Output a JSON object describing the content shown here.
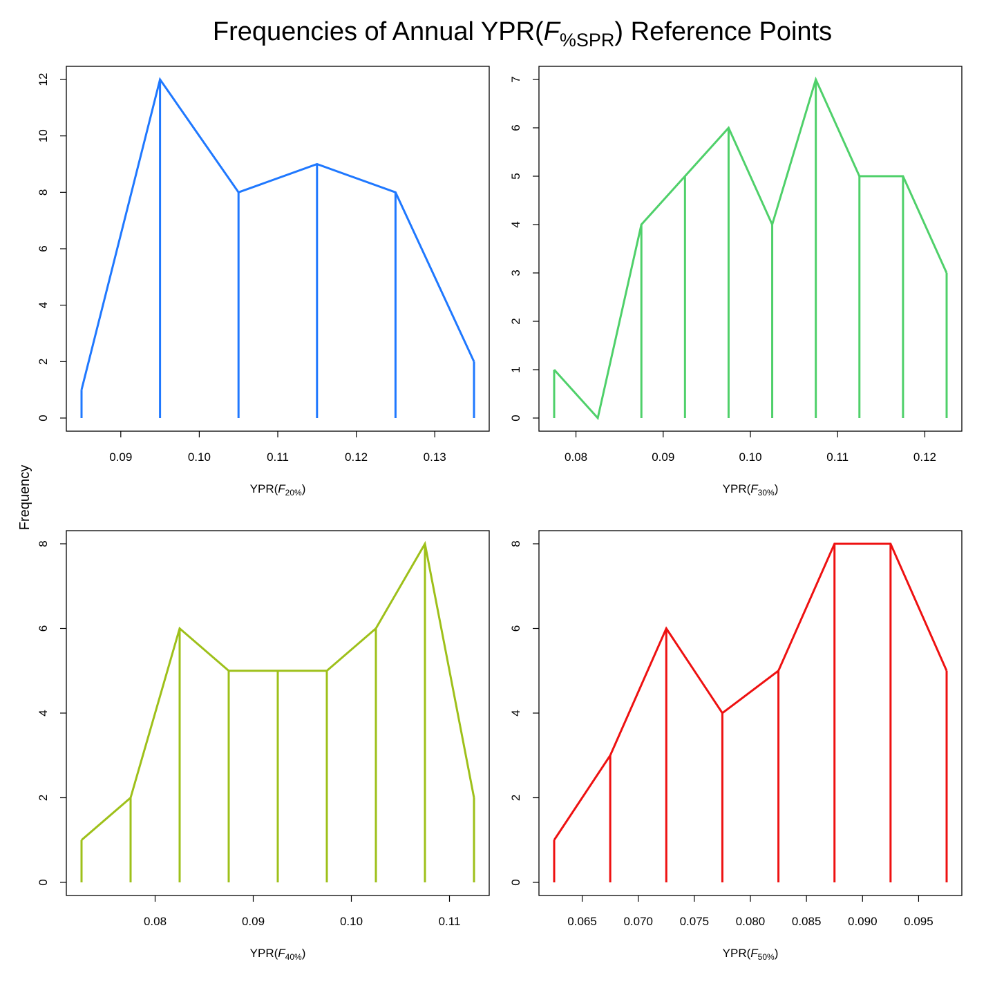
{
  "figure": {
    "title_prefix": "Frequencies of Annual YPR(",
    "title_f": "F",
    "title_sub": "%SPR",
    "title_suffix": ") Reference Points",
    "ylabel": "Frequency"
  },
  "chart_data": [
    {
      "type": "line",
      "render": "frequency-polygon-with-spikes",
      "color": "#1f78ff",
      "xlabel_prefix": "YPR(",
      "xlabel_f": "F",
      "xlabel_sub": "20%",
      "xlabel_suffix": ")",
      "x": [
        0.085,
        0.095,
        0.105,
        0.115,
        0.125,
        0.135
      ],
      "y": [
        1,
        12,
        8,
        9,
        8,
        2
      ],
      "xticks": [
        0.09,
        0.1,
        0.11,
        0.12,
        0.13
      ],
      "xtick_labels": [
        "0.09",
        "0.10",
        "0.11",
        "0.12",
        "0.13"
      ],
      "yticks": [
        0,
        2,
        4,
        6,
        8,
        10,
        12
      ],
      "ytick_labels": [
        "0",
        "2",
        "4",
        "6",
        "8",
        "10",
        "12"
      ]
    },
    {
      "type": "line",
      "render": "frequency-polygon-with-spikes",
      "color": "#4fd06a",
      "xlabel_prefix": "YPR(",
      "xlabel_f": "F",
      "xlabel_sub": "30%",
      "xlabel_suffix": ")",
      "x": [
        0.0775,
        0.0825,
        0.0875,
        0.0925,
        0.0975,
        0.1025,
        0.1075,
        0.1125,
        0.1175,
        0.1225
      ],
      "y": [
        1,
        0,
        4,
        5,
        6,
        4,
        7,
        5,
        5,
        3
      ],
      "xticks": [
        0.08,
        0.09,
        0.1,
        0.11,
        0.12
      ],
      "xtick_labels": [
        "0.08",
        "0.09",
        "0.10",
        "0.11",
        "0.12"
      ],
      "yticks": [
        0,
        1,
        2,
        3,
        4,
        5,
        6,
        7
      ],
      "ytick_labels": [
        "0",
        "1",
        "2",
        "3",
        "4",
        "5",
        "6",
        "7"
      ]
    },
    {
      "type": "line",
      "render": "frequency-polygon-with-spikes",
      "color": "#9ec01a",
      "xlabel_prefix": "YPR(",
      "xlabel_f": "F",
      "xlabel_sub": "40%",
      "xlabel_suffix": ")",
      "x": [
        0.0725,
        0.0775,
        0.0825,
        0.0875,
        0.0925,
        0.0975,
        0.1025,
        0.1075,
        0.1125
      ],
      "y": [
        1,
        2,
        6,
        5,
        5,
        5,
        6,
        8,
        2
      ],
      "xticks": [
        0.08,
        0.09,
        0.1,
        0.11
      ],
      "xtick_labels": [
        "0.08",
        "0.09",
        "0.10",
        "0.11"
      ],
      "yticks": [
        0,
        2,
        4,
        6,
        8
      ],
      "ytick_labels": [
        "0",
        "2",
        "4",
        "6",
        "8"
      ]
    },
    {
      "type": "line",
      "render": "frequency-polygon-with-spikes",
      "color": "#ee1111",
      "xlabel_prefix": "YPR(",
      "xlabel_f": "F",
      "xlabel_sub": "50%",
      "xlabel_suffix": ")",
      "x": [
        0.0625,
        0.0675,
        0.0725,
        0.0775,
        0.0825,
        0.0875,
        0.0925,
        0.0975
      ],
      "y": [
        1,
        3,
        6,
        4,
        5,
        8,
        8,
        5
      ],
      "xticks": [
        0.065,
        0.07,
        0.075,
        0.08,
        0.085,
        0.09,
        0.095
      ],
      "xtick_labels": [
        "0.065",
        "0.070",
        "0.075",
        "0.080",
        "0.085",
        "0.090",
        "0.095"
      ],
      "yticks": [
        0,
        2,
        4,
        6,
        8
      ],
      "ytick_labels": [
        "0",
        "2",
        "4",
        "6",
        "8"
      ]
    }
  ]
}
